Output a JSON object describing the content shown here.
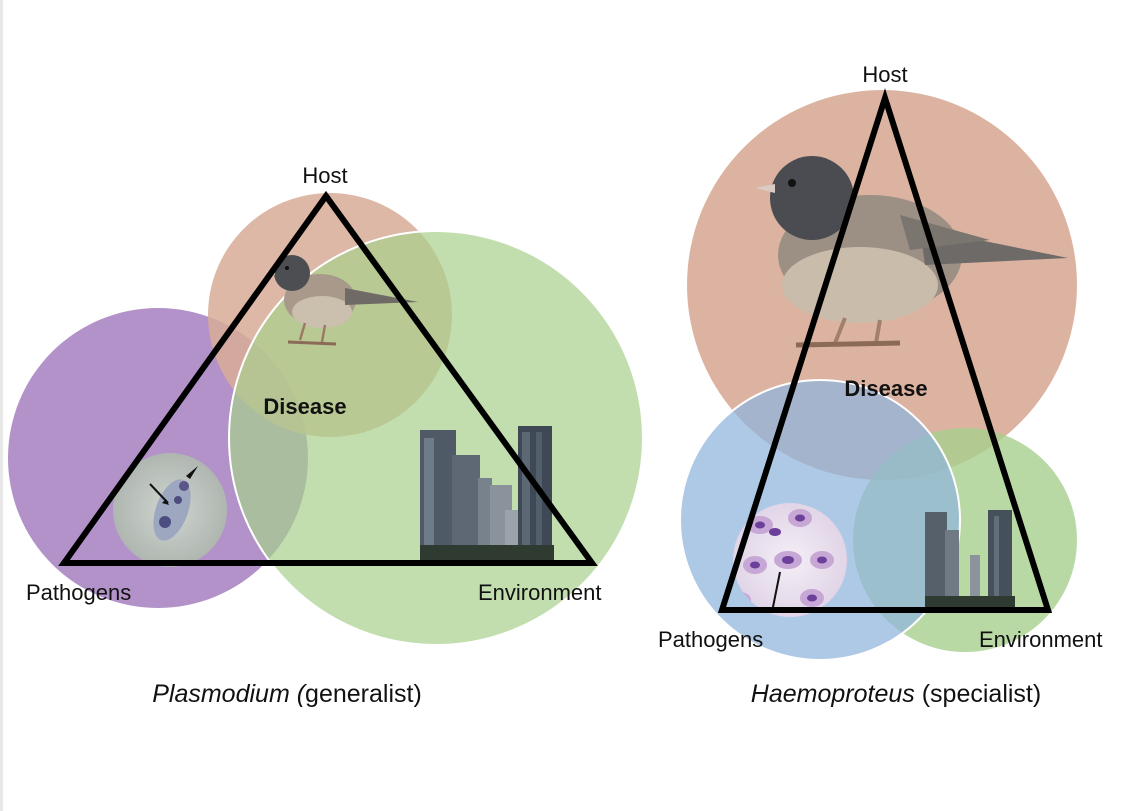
{
  "colors": {
    "host": "#d8ab97",
    "environment": "#a8d08d",
    "pathogen_plasmodium": "#a57fbf",
    "pathogen_haemoproteus": "#8fb4dc",
    "triangle": "#000000"
  },
  "left_panel": {
    "host_label": "Host",
    "pathogens_label": "Pathogens",
    "environment_label": "Environment",
    "disease_label": "Disease",
    "caption_italic": "Plasmodium (",
    "caption_normal": "generalist)"
  },
  "right_panel": {
    "host_label": "Host",
    "pathogens_label": "Pathogens",
    "environment_label": "Environment",
    "disease_label": "Disease",
    "caption_italic": "Haemoproteus",
    "caption_normal": " (specialist)"
  },
  "icons": {
    "bird": "junco-bird-icon",
    "city": "city-skyline-icon",
    "parasite_plasmodium": "plasmodium-micrograph-icon",
    "parasite_haemoproteus": "haemoproteus-micrograph-icon"
  }
}
